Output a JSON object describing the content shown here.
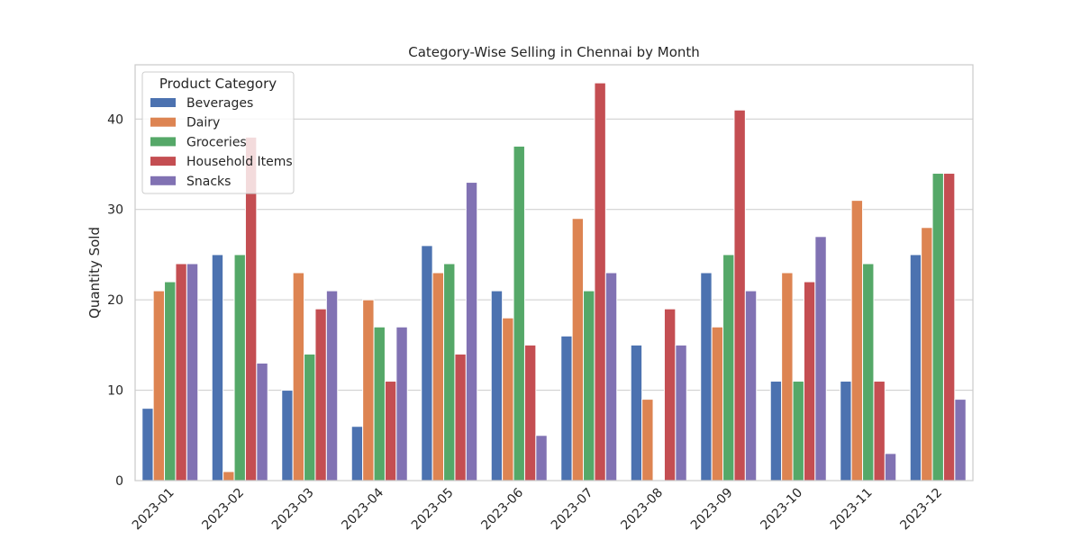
{
  "chart_data": {
    "type": "bar",
    "title": "Category-Wise Selling in Chennai by Month",
    "xlabel": "",
    "ylabel": "Quantity Sold",
    "ylim": [
      0,
      46
    ],
    "yticks": [
      0,
      10,
      20,
      30,
      40
    ],
    "grid": "horizontal",
    "legend": {
      "title": "Product Category",
      "placement": "top-left"
    },
    "categories": [
      "2023-01",
      "2023-02",
      "2023-03",
      "2023-04",
      "2023-05",
      "2023-06",
      "2023-07",
      "2023-08",
      "2023-09",
      "2023-10",
      "2023-11",
      "2023-12"
    ],
    "series": [
      {
        "name": "Beverages",
        "color": "#4c72b0",
        "values": [
          8,
          25,
          10,
          6,
          26,
          21,
          16,
          15,
          23,
          11,
          11,
          25
        ]
      },
      {
        "name": "Dairy",
        "color": "#dd8452",
        "values": [
          21,
          1,
          23,
          20,
          23,
          18,
          29,
          9,
          17,
          23,
          31,
          28
        ]
      },
      {
        "name": "Groceries",
        "color": "#55a868",
        "values": [
          22,
          25,
          14,
          17,
          24,
          37,
          21,
          0,
          25,
          11,
          24,
          34
        ]
      },
      {
        "name": "Household Items",
        "color": "#c44e52",
        "values": [
          24,
          38,
          19,
          11,
          14,
          15,
          44,
          19,
          41,
          22,
          11,
          34
        ]
      },
      {
        "name": "Snacks",
        "color": "#8172b3",
        "values": [
          24,
          13,
          21,
          17,
          33,
          5,
          23,
          15,
          21,
          27,
          3,
          9
        ]
      }
    ]
  }
}
